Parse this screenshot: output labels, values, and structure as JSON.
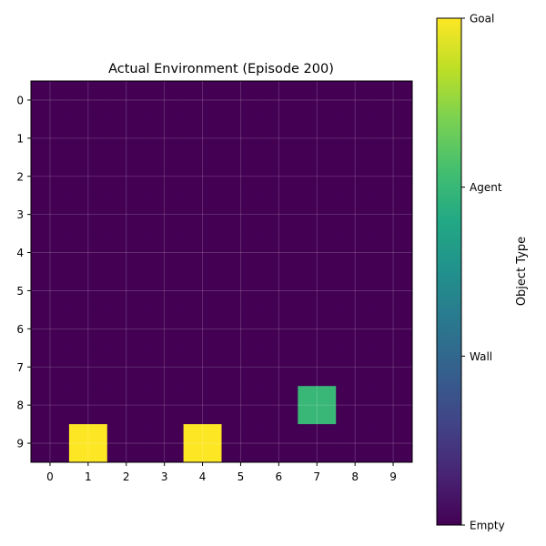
{
  "chart_data": {
    "type": "heatmap",
    "title": "Actual Environment (Episode 200)",
    "xlabel": "",
    "ylabel": "",
    "x_ticks": [
      "0",
      "1",
      "2",
      "3",
      "4",
      "5",
      "6",
      "7",
      "8",
      "9"
    ],
    "y_ticks": [
      "0",
      "1",
      "2",
      "3",
      "4",
      "5",
      "6",
      "7",
      "8",
      "9"
    ],
    "grid": true,
    "colormap": "viridis",
    "vmin": 0,
    "vmax": 3,
    "values": [
      [
        0,
        0,
        0,
        0,
        0,
        0,
        0,
        0,
        0,
        0
      ],
      [
        0,
        0,
        0,
        0,
        0,
        0,
        0,
        0,
        0,
        0
      ],
      [
        0,
        0,
        0,
        0,
        0,
        0,
        0,
        0,
        0,
        0
      ],
      [
        0,
        0,
        0,
        0,
        0,
        0,
        0,
        0,
        0,
        0
      ],
      [
        0,
        0,
        0,
        0,
        0,
        0,
        0,
        0,
        0,
        0
      ],
      [
        0,
        0,
        0,
        0,
        0,
        0,
        0,
        0,
        0,
        0
      ],
      [
        0,
        0,
        0,
        0,
        0,
        0,
        0,
        0,
        0,
        0
      ],
      [
        0,
        0,
        0,
        0,
        0,
        0,
        0,
        0,
        0,
        0
      ],
      [
        0,
        0,
        0,
        0,
        0,
        0,
        0,
        2,
        0,
        0
      ],
      [
        0,
        3,
        0,
        0,
        3,
        0,
        0,
        0,
        0,
        0
      ]
    ],
    "colorbar": {
      "label": "Object Type",
      "ticks": [
        {
          "value": 0,
          "label": "Empty"
        },
        {
          "value": 1,
          "label": "Wall"
        },
        {
          "value": 2,
          "label": "Agent"
        },
        {
          "value": 3,
          "label": "Goal"
        }
      ]
    },
    "colors": {
      "empty": "#440154",
      "agent": "#22a884",
      "goal": "#fde725"
    }
  }
}
